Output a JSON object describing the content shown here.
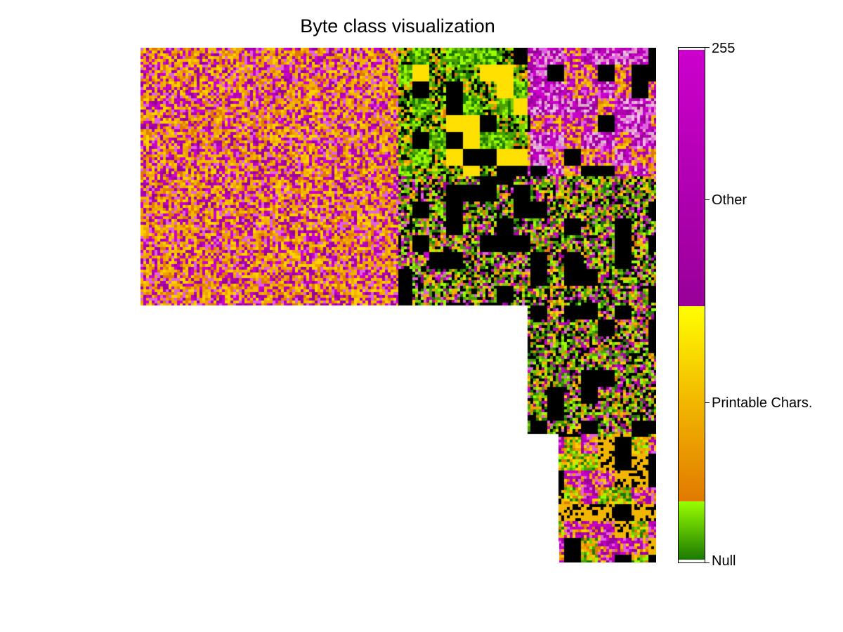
{
  "chart_data": {
    "type": "heatmap",
    "title": "Byte class visualization",
    "xlabel": "",
    "ylabel": "",
    "layout": "hilbert-curve byte map",
    "colorbar": {
      "range": [
        0,
        255
      ],
      "ticks": [
        {
          "label": "Null",
          "value": 0
        },
        {
          "label": "Printable Chars.",
          "value": 64
        },
        {
          "label": "Other",
          "value": 192
        },
        {
          "label": "255",
          "value": 255
        }
      ],
      "bands": [
        {
          "class": "null",
          "range": [
            0,
            0
          ],
          "colors": [
            "#ffffff"
          ]
        },
        {
          "class": "low",
          "range": [
            1,
            31
          ],
          "colors": [
            "#1a7a00",
            "#99ff00"
          ]
        },
        {
          "class": "printable",
          "range": [
            32,
            127
          ],
          "colors": [
            "#e07a00",
            "#ffff00"
          ]
        },
        {
          "class": "other",
          "range": [
            128,
            254
          ],
          "colors": [
            "#990099",
            "#cc00cc"
          ]
        },
        {
          "class": "max",
          "range": [
            255,
            255
          ],
          "colors": [
            "#ffffff"
          ]
        }
      ]
    },
    "regions": [
      {
        "area": [
          0,
          0,
          50,
          50
        ],
        "class": "printable+other",
        "pattern": "random"
      },
      {
        "area": [
          50,
          0,
          25,
          25
        ],
        "class": "mixed",
        "pattern": "blocky-dark"
      },
      {
        "area": [
          75,
          0,
          25,
          25
        ],
        "class": "other",
        "pattern": "blocky"
      },
      {
        "area": [
          50,
          25,
          50,
          25
        ],
        "class": "mixed",
        "pattern": "green-dark"
      },
      {
        "area": [
          75,
          50,
          25,
          25
        ],
        "class": "mixed",
        "pattern": "green-dark"
      },
      {
        "area": [
          81,
          75,
          19,
          25
        ],
        "class": "printable+other",
        "pattern": "colorful"
      }
    ],
    "empty_areas": [
      [
        0,
        50,
        50,
        50
      ],
      [
        50,
        75,
        31,
        25
      ]
    ]
  }
}
